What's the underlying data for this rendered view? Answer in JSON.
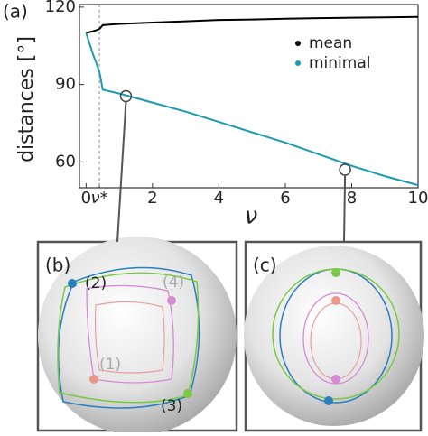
{
  "chart_data": {
    "type": "line",
    "panel_label": "(a)",
    "xlabel": "ν",
    "ylabel": "distances [°]",
    "x": [
      0,
      0.1,
      0.2,
      0.3,
      0.4,
      0.5,
      1,
      2,
      3,
      4,
      5,
      6,
      7,
      8,
      9,
      10
    ],
    "series": [
      {
        "name": "mean",
        "color": "#000000",
        "values": [
          110,
          110.3,
          110.6,
          111,
          111.5,
          113,
          113.5,
          114,
          114.5,
          115,
          115.2,
          115.5,
          115.7,
          115.9,
          116,
          116.2
        ]
      },
      {
        "name": "minimal",
        "color": "#1a9bb0",
        "values": [
          110,
          106,
          102,
          98.5,
          95,
          88,
          86.5,
          83,
          79.5,
          75.5,
          71.5,
          67.5,
          63,
          58.5,
          54.5,
          51
        ]
      }
    ],
    "xlim": [
      -0.2,
      10
    ],
    "ylim": [
      50,
      121
    ],
    "xticks": [
      0,
      {
        "value": 0.4,
        "label": "ν*"
      },
      2,
      4,
      6,
      8,
      10
    ],
    "yticks": [
      60,
      90,
      120
    ],
    "highlights": [
      {
        "x": 1.2,
        "y": 85.5
      },
      {
        "x": 7.8,
        "y": 57
      }
    ],
    "legend": "upper right"
  },
  "insets": [
    {
      "label": "(b)",
      "points": [
        "(1)",
        "(2)",
        "(3)",
        "(4)"
      ]
    },
    {
      "label": "(c)"
    }
  ]
}
